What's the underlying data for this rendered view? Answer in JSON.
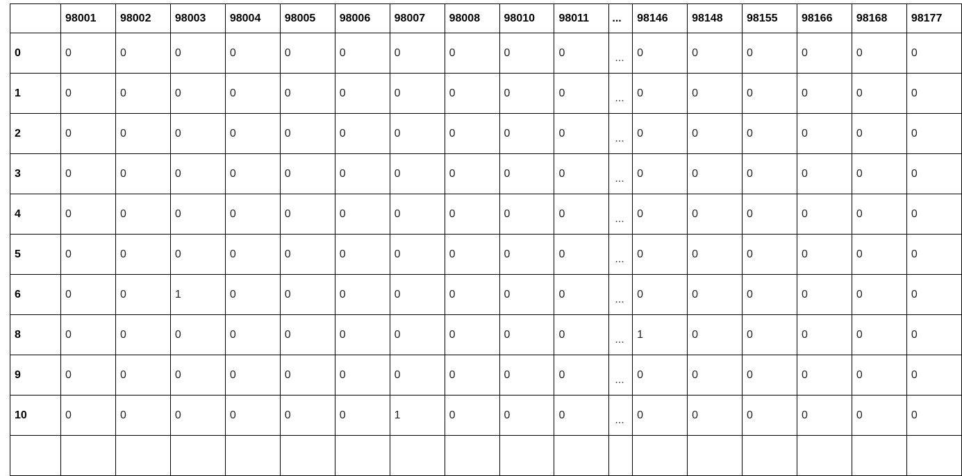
{
  "table": {
    "columns": [
      "98001",
      "98002",
      "98003",
      "98004",
      "98005",
      "98006",
      "98007",
      "98008",
      "98010",
      "98011",
      "...",
      "98146",
      "98148",
      "98155",
      "98166",
      "98168",
      "98177"
    ],
    "rows": [
      {
        "index": "0",
        "values": [
          "0",
          "0",
          "0",
          "0",
          "0",
          "0",
          "0",
          "0",
          "0",
          "0",
          "...",
          "0",
          "0",
          "0",
          "0",
          "0",
          "0"
        ]
      },
      {
        "index": "1",
        "values": [
          "0",
          "0",
          "0",
          "0",
          "0",
          "0",
          "0",
          "0",
          "0",
          "0",
          "...",
          "0",
          "0",
          "0",
          "0",
          "0",
          "0"
        ]
      },
      {
        "index": "2",
        "values": [
          "0",
          "0",
          "0",
          "0",
          "0",
          "0",
          "0",
          "0",
          "0",
          "0",
          "...",
          "0",
          "0",
          "0",
          "0",
          "0",
          "0"
        ]
      },
      {
        "index": "3",
        "values": [
          "0",
          "0",
          "0",
          "0",
          "0",
          "0",
          "0",
          "0",
          "0",
          "0",
          "...",
          "0",
          "0",
          "0",
          "0",
          "0",
          "0"
        ]
      },
      {
        "index": "4",
        "values": [
          "0",
          "0",
          "0",
          "0",
          "0",
          "0",
          "0",
          "0",
          "0",
          "0",
          "...",
          "0",
          "0",
          "0",
          "0",
          "0",
          "0"
        ]
      },
      {
        "index": "5",
        "values": [
          "0",
          "0",
          "0",
          "0",
          "0",
          "0",
          "0",
          "0",
          "0",
          "0",
          "...",
          "0",
          "0",
          "0",
          "0",
          "0",
          "0"
        ]
      },
      {
        "index": "6",
        "values": [
          "0",
          "0",
          "1",
          "0",
          "0",
          "0",
          "0",
          "0",
          "0",
          "0",
          "...",
          "0",
          "0",
          "0",
          "0",
          "0",
          "0"
        ]
      },
      {
        "index": "8",
        "values": [
          "0",
          "0",
          "0",
          "0",
          "0",
          "0",
          "0",
          "0",
          "0",
          "0",
          "...",
          "1",
          "0",
          "0",
          "0",
          "0",
          "0"
        ]
      },
      {
        "index": "9",
        "values": [
          "0",
          "0",
          "0",
          "0",
          "0",
          "0",
          "0",
          "0",
          "0",
          "0",
          "...",
          "0",
          "0",
          "0",
          "0",
          "0",
          "0"
        ]
      },
      {
        "index": "10",
        "values": [
          "0",
          "0",
          "0",
          "0",
          "0",
          "0",
          "1",
          "0",
          "0",
          "0",
          "...",
          "0",
          "0",
          "0",
          "0",
          "0",
          "0"
        ]
      },
      {
        "index": "",
        "values": [
          "",
          "",
          "",
          "",
          "",
          "",
          "",
          "",
          "",
          "",
          "",
          "",
          "",
          "",
          "",
          "",
          ""
        ]
      }
    ]
  }
}
